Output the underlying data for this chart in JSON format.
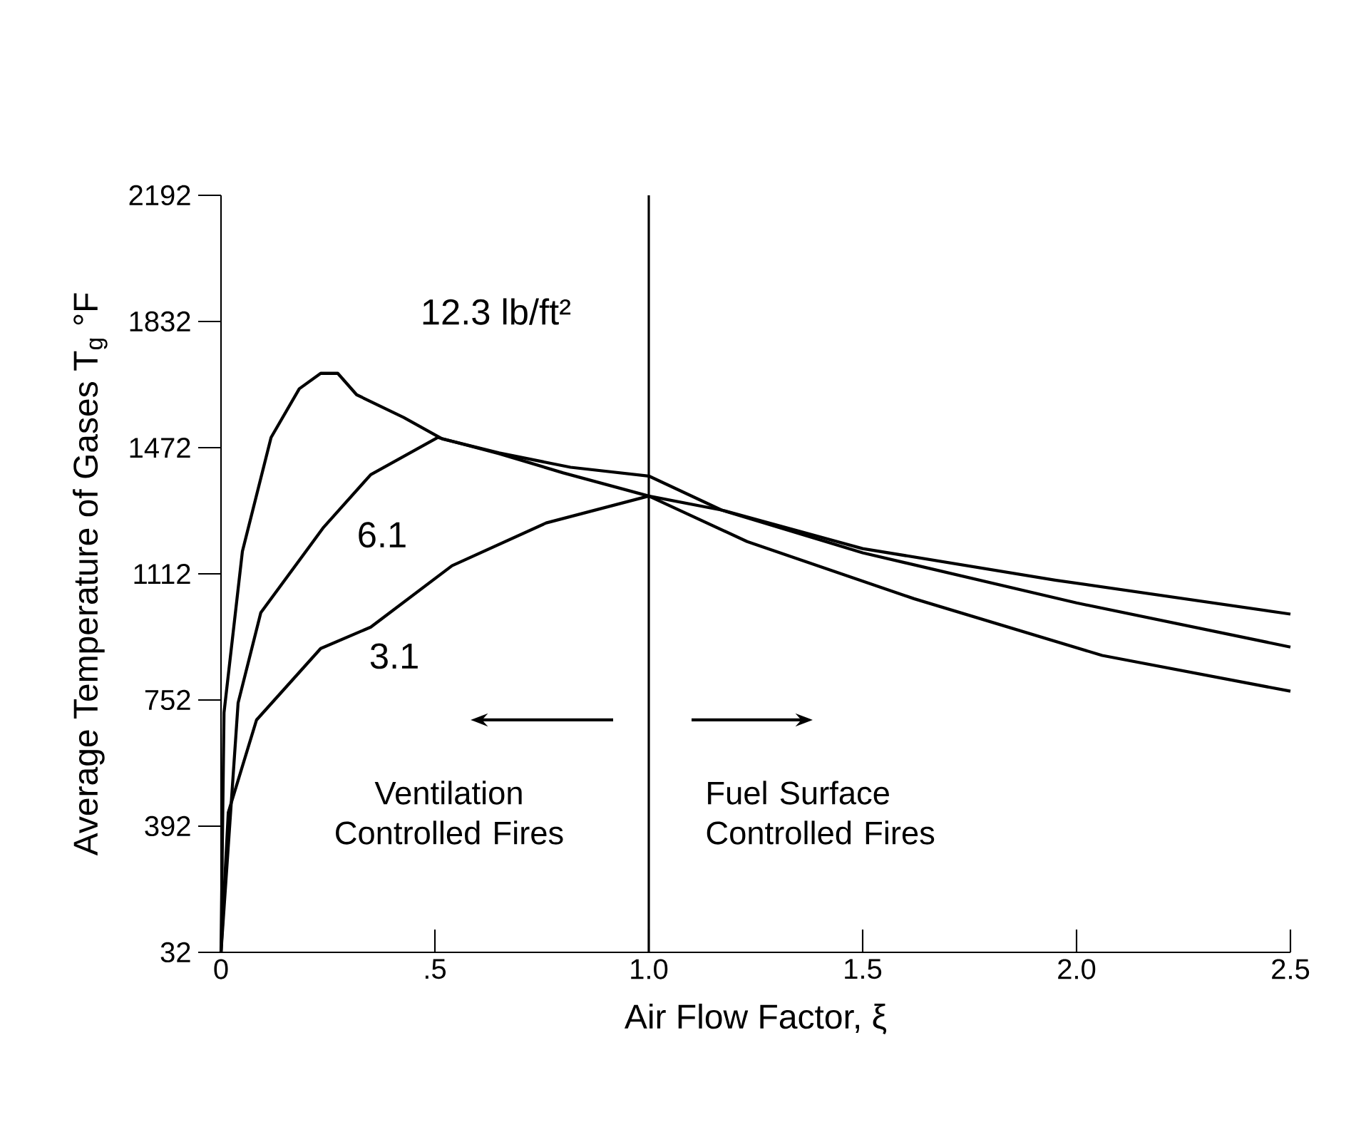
{
  "chart_data": {
    "type": "line",
    "xlabel": "Air Flow Factor, ξ",
    "ylabel": "Average Temperature of Gases   T$_{g}$ °F",
    "xlim": [
      0,
      2.5
    ],
    "ylim": [
      32,
      2192
    ],
    "xticks": [
      {
        "value": 0,
        "label": "0"
      },
      {
        "value": 0.5,
        "label": ".5"
      },
      {
        "value": 1,
        "label": "1.0"
      },
      {
        "value": 1.5,
        "label": "1.5"
      },
      {
        "value": 2,
        "label": "2.0"
      },
      {
        "value": 2.5,
        "label": "2.5"
      }
    ],
    "yticks": [
      32,
      392,
      752,
      1112,
      1472,
      1832,
      2192
    ],
    "series": [
      {
        "name": "12.3 lb/ft²",
        "color": "#000000",
        "x": [
          0,
          0.007,
          0.05,
          0.117,
          0.183,
          0.233,
          0.273,
          0.317,
          0.427,
          0.517,
          0.65,
          0.817,
          1.0,
          1.17,
          1.5,
          1.95,
          2.5
        ],
        "values": [
          32,
          716,
          1176,
          1501,
          1640,
          1684,
          1684,
          1623,
          1558,
          1497,
          1457,
          1416,
          1391,
          1294,
          1184,
          1094,
          997
        ]
      },
      {
        "name": "6.1",
        "color": "#000000",
        "x": [
          0,
          0.04,
          0.093,
          0.24,
          0.35,
          0.507,
          0.65,
          0.8,
          1.0,
          1.17,
          1.5,
          2.0,
          2.5
        ],
        "values": [
          32,
          744,
          1001,
          1245,
          1395,
          1501,
          1455,
          1400,
          1334,
          1294,
          1172,
          1029,
          903
        ]
      },
      {
        "name": "3.1",
        "color": "#000000",
        "x": [
          0,
          0.017,
          0.083,
          0.233,
          0.35,
          0.54,
          0.76,
          1.0,
          1.23,
          1.62,
          2.06,
          2.5
        ],
        "values": [
          32,
          431,
          695,
          899,
          960,
          1135,
          1257,
          1334,
          1204,
          1041,
          879,
          777
        ]
      }
    ],
    "ref_lines": [
      {
        "axis": "x",
        "value": 1.0,
        "color": "#000000"
      }
    ],
    "annotations": [
      "Ventilation Controlled Fires",
      "Fuel Surface Controlled Fires"
    ]
  }
}
